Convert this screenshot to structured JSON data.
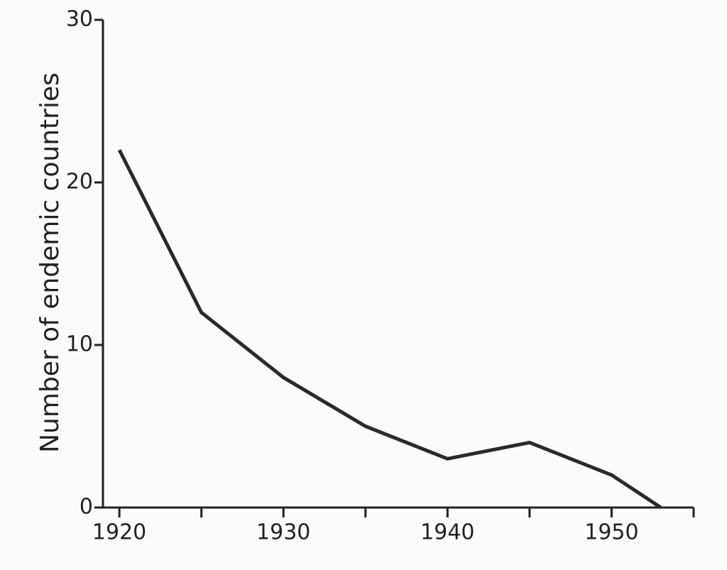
{
  "chart_data": {
    "type": "line",
    "ylabel": "Number of endemic countries",
    "x": [
      1920,
      1925,
      1930,
      1935,
      1940,
      1945,
      1950,
      1953
    ],
    "values": [
      22,
      12,
      8,
      5,
      3,
      4,
      2,
      0
    ],
    "color": "#2a2a2a",
    "xlim": [
      1919,
      1955
    ],
    "xticks": [
      1920,
      1930,
      1940,
      1950
    ],
    "xminorticks": [
      1925,
      1935,
      1945,
      1955
    ],
    "ylim": [
      0,
      30
    ],
    "yticks": [
      0,
      10,
      20,
      30
    ],
    "grid": false
  }
}
